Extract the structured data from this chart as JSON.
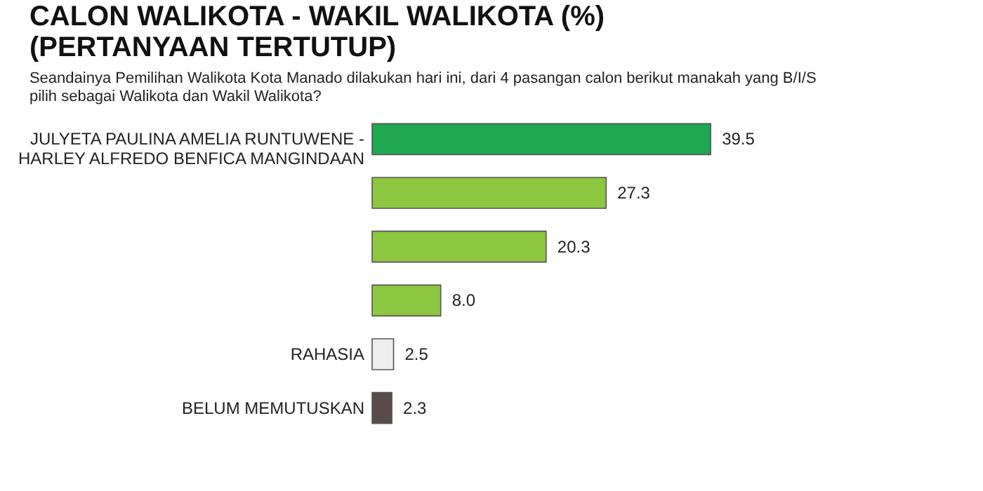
{
  "chart_data": {
    "type": "bar",
    "orientation": "horizontal",
    "title": [
      "CALON WALIKOTA - WAKIL WALIKOTA (%)",
      "(PERTANYAAN TERTUTUP)"
    ],
    "subtitle": [
      "Seandainya Pemilihan Walikota Kota Manado dilakukan hari ini, dari 4 pasangan calon berikut manakah yang B/I/S",
      "pilih sebagai Walikota dan Wakil Walikota?"
    ],
    "categories": [
      "JULYETA PAULINA AMELIA RUNTUWENE -\nHARLEY ALFREDO BENFICA MANGINDAAN",
      null,
      null,
      null,
      "RAHASIA",
      "BELUM MEMUTUSKAN"
    ],
    "values": [
      39.5,
      27.3,
      20.3,
      8.0,
      2.5,
      2.3
    ],
    "colors": [
      "#1fa84f",
      "#8dc63f",
      "#8dc63f",
      "#8dc63f",
      "#eeeeee",
      "#5b4a4a"
    ],
    "value_labels": [
      "39.5",
      "27.3",
      "20.3",
      "8.0",
      "2.5",
      "2.3"
    ]
  }
}
